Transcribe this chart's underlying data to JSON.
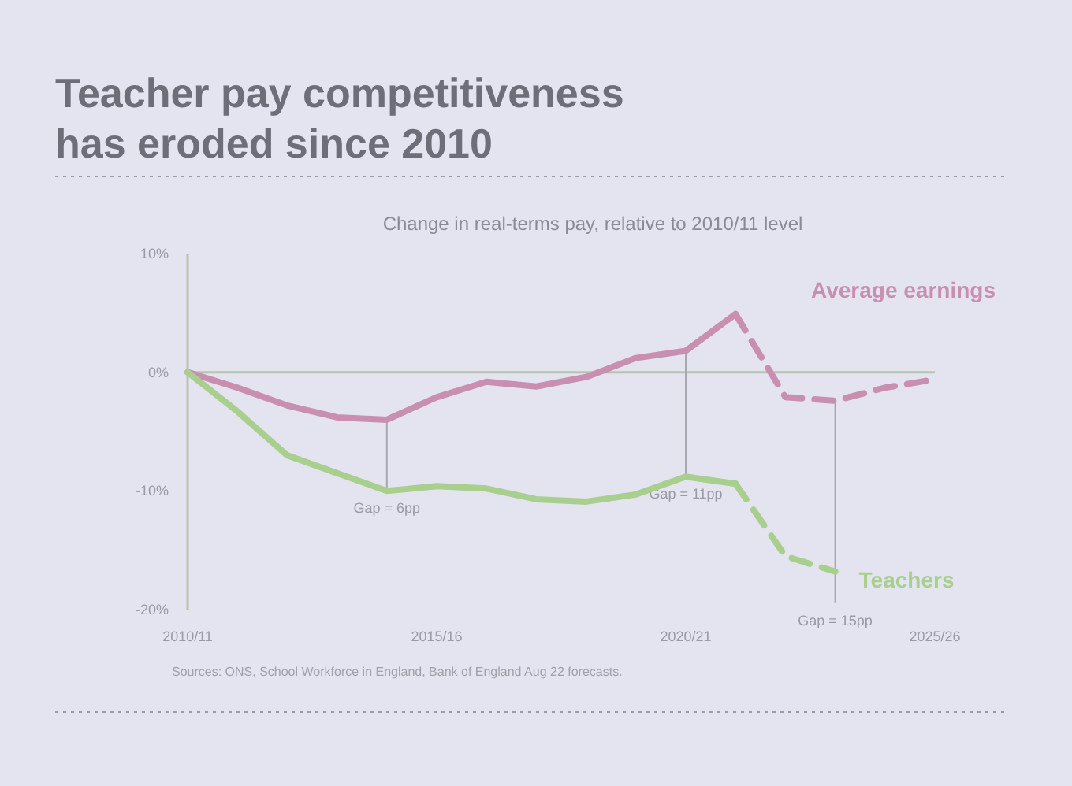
{
  "chart_data": {
    "type": "line",
    "title": "Teacher pay competitiveness has eroded since 2010",
    "subtitle": "Change in real-terms pay, relative to 2010/11 level",
    "categories": [
      "2010/11",
      null,
      null,
      null,
      null,
      "2015/16",
      null,
      null,
      null,
      null,
      "2020/21",
      null,
      null,
      null,
      null,
      "2025/26"
    ],
    "series": [
      {
        "name": "Average earnings",
        "color": "#c98fb0",
        "values": [
          0,
          -1.3,
          -2.8,
          -3.8,
          -4,
          -2.1,
          -0.8,
          -1.2,
          -0.4,
          1.2,
          1.8,
          4.9,
          null,
          null,
          null,
          null
        ],
        "line_style": "solid"
      },
      {
        "color": "#c98fb0",
        "values": [
          null,
          null,
          null,
          null,
          null,
          null,
          null,
          null,
          null,
          null,
          null,
          4.9,
          -2.1,
          -2.4,
          -1.3,
          -0.6
        ],
        "line_style": "dashed"
      },
      {
        "name": "Teachers",
        "color": "#a9cf8f",
        "values": [
          0,
          -3.3,
          -7,
          -8.5,
          -10,
          -9.6,
          -9.8,
          -10.7,
          -10.9,
          -10.3,
          -8.8,
          -9.4,
          null,
          null,
          null,
          null
        ],
        "line_style": "solid"
      },
      {
        "color": "#a9cf8f",
        "values": [
          null,
          null,
          null,
          null,
          null,
          null,
          null,
          null,
          null,
          null,
          null,
          -9.4,
          -15.5,
          -16.8,
          null,
          null
        ],
        "line_style": "dashed"
      }
    ],
    "ylim": [
      -20,
      10
    ],
    "yticks": [
      {
        "value": 10,
        "label": "10%"
      },
      {
        "value": 0,
        "label": "0%"
      },
      {
        "value": -10,
        "label": "-10%"
      },
      {
        "value": -20,
        "label": "-20%"
      }
    ],
    "ref_lines": [
      {
        "axis": "y",
        "value": 0,
        "color": "#b8c4b0"
      }
    ],
    "annotations": [
      {
        "text": "Gap = 6pp",
        "y": -10
      },
      {
        "text": "Gap = 11pp",
        "x": "2020/21",
        "y": -8.8
      },
      {
        "text": "Gap = 15pp",
        "y": -16.8
      },
      "Sources: ONS, School Workforce in England, Bank of England Aug 22 forecasts."
    ],
    "grid": false,
    "marker": "none"
  }
}
